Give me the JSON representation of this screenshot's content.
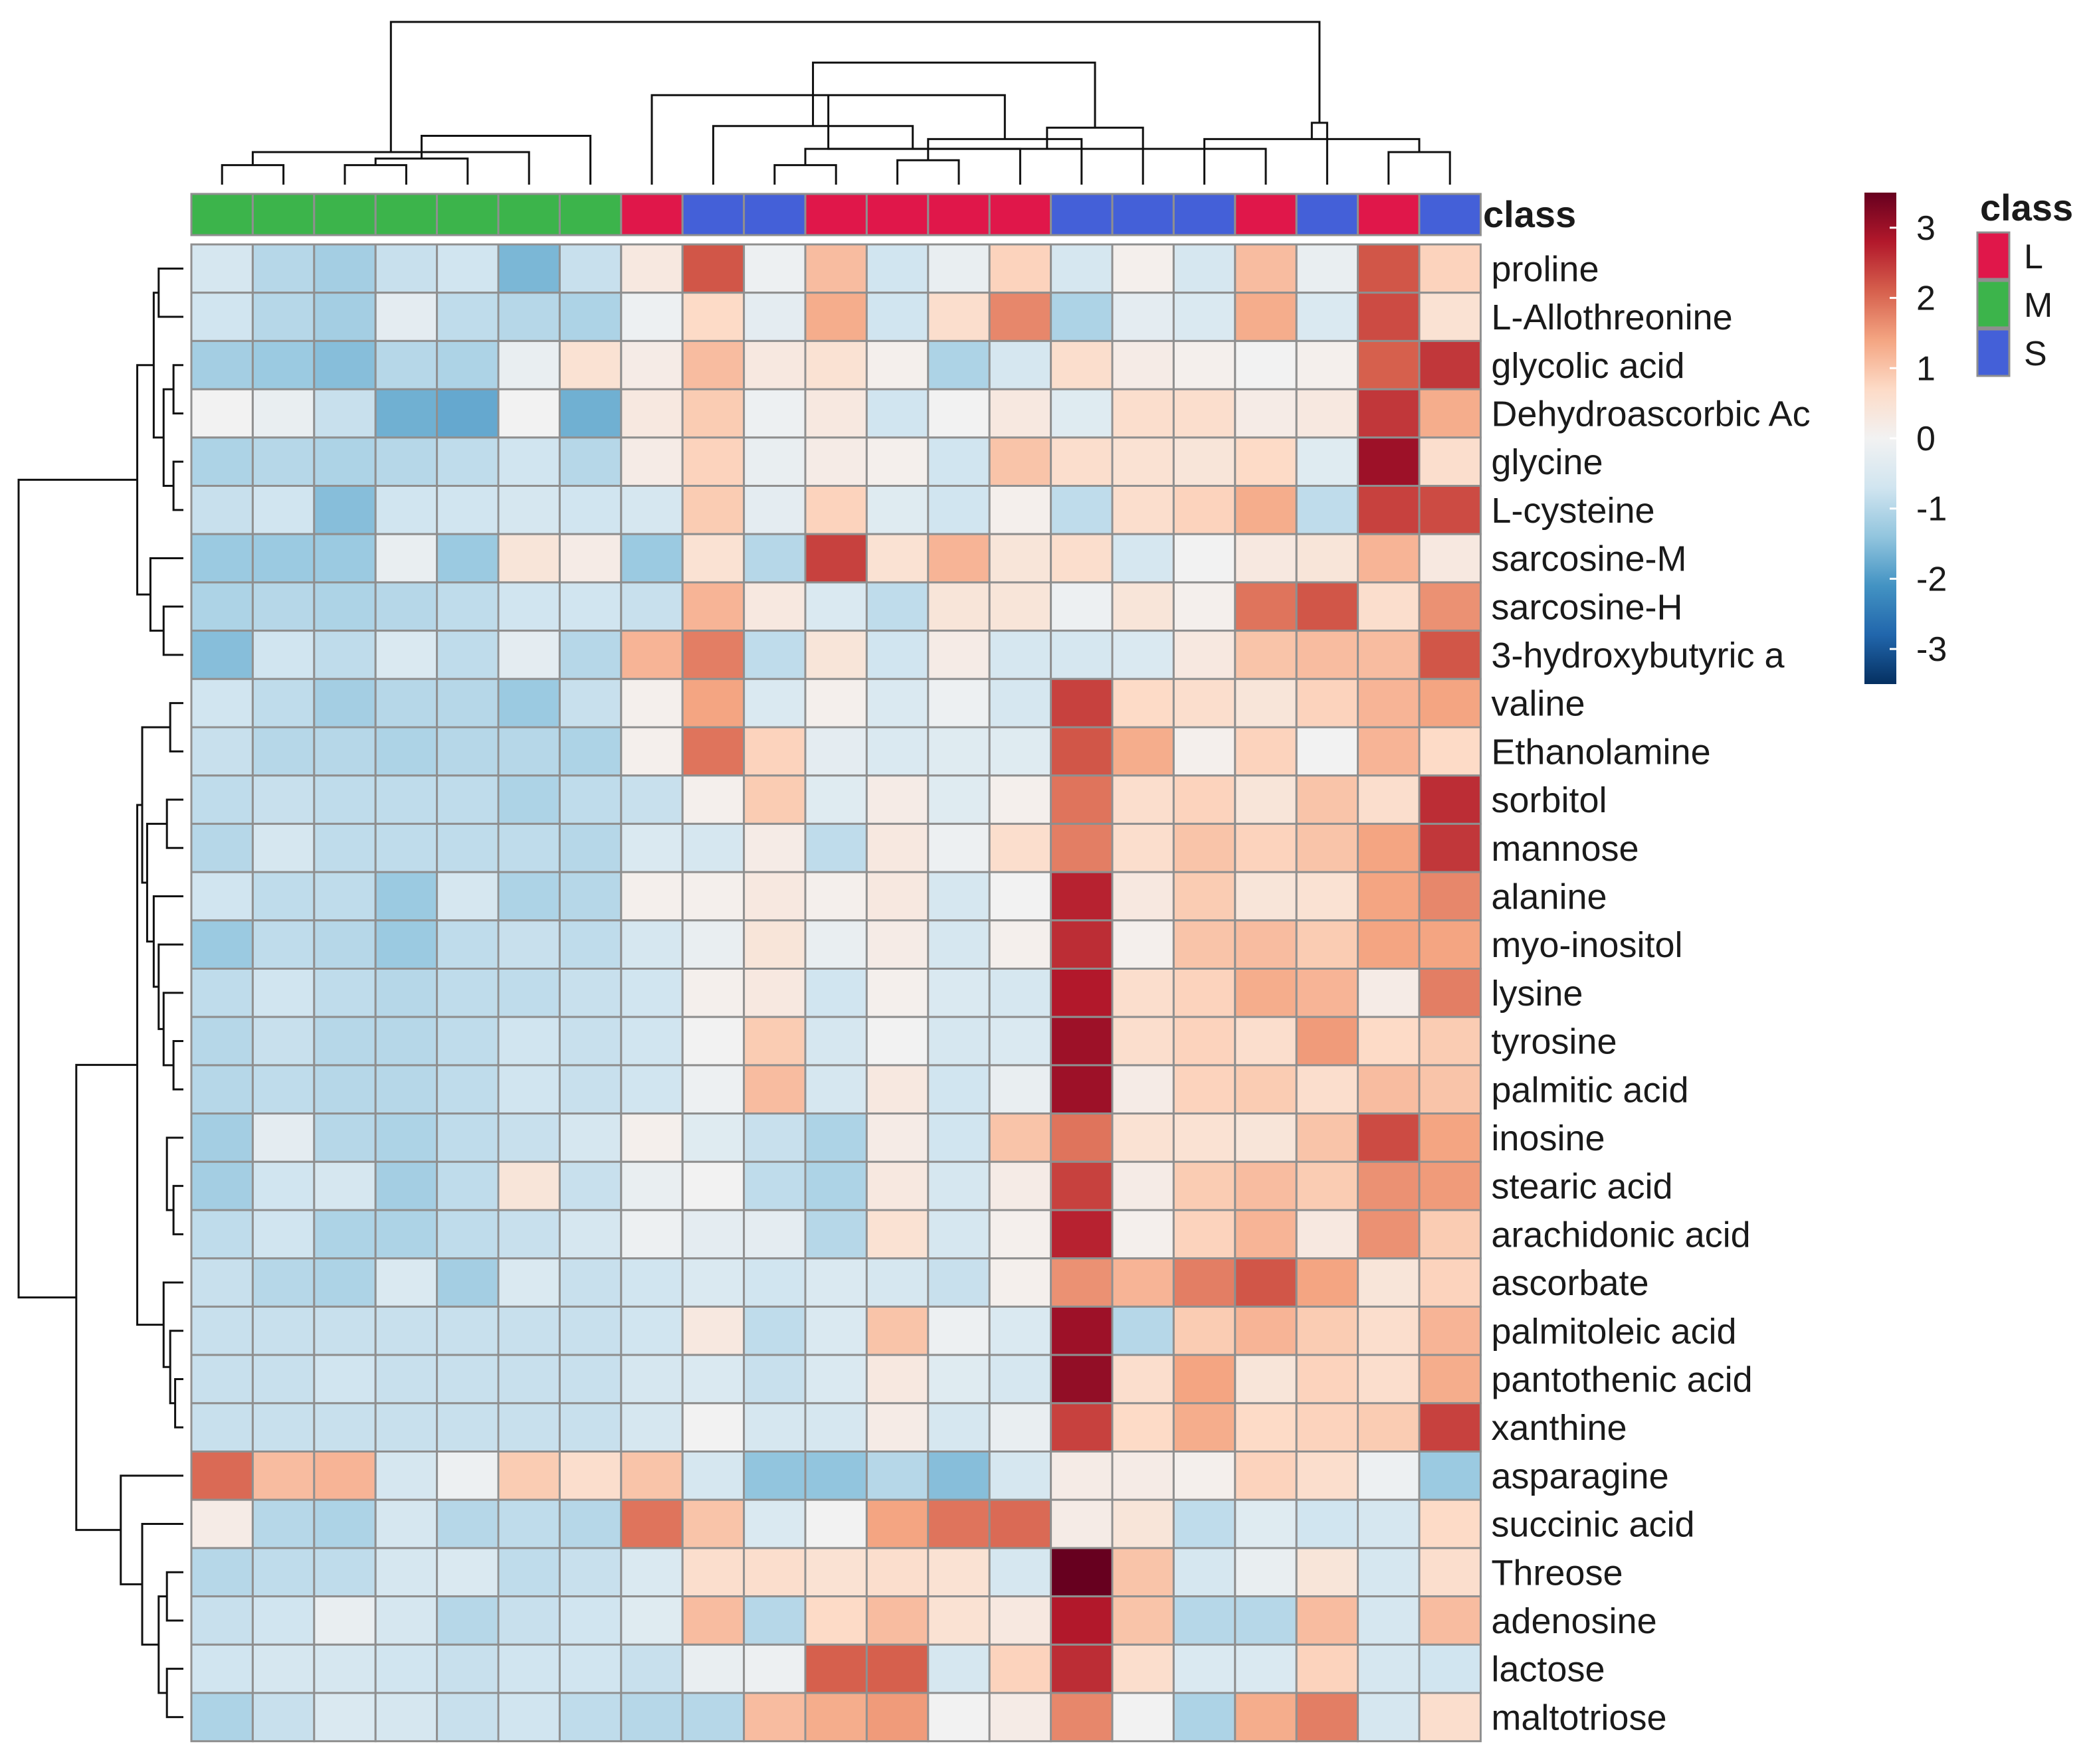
{
  "chart_data": {
    "type": "heatmap",
    "title": "",
    "annotation_title": "class",
    "column_classes": [
      "M",
      "M",
      "M",
      "M",
      "M",
      "M",
      "M",
      "L",
      "S",
      "S",
      "L",
      "L",
      "L",
      "L",
      "S",
      "S",
      "S",
      "L",
      "S",
      "L",
      "S"
    ],
    "class_colors": {
      "L": "#E0174A",
      "M": "#3CB44B",
      "S": "#4460D8"
    },
    "legend_classes": [
      "L",
      "M",
      "S"
    ],
    "rows": [
      "proline",
      "L-Allothreonine",
      "glycolic acid",
      "Dehydroascorbic Ac",
      "glycine",
      "L-cysteine",
      "sarcosine-M",
      "sarcosine-H",
      "3-hydroxybutyric a",
      "valine",
      "Ethanolamine",
      "sorbitol",
      "mannose",
      "alanine",
      "myo-inositol",
      "lysine",
      "tyrosine",
      "palmitic acid",
      "inosine",
      "stearic acid",
      "arachidonic acid",
      "ascorbate",
      "palmitoleic acid",
      "pantothenic acid",
      "xanthine",
      "asparagine",
      "succinic acid",
      "Threose",
      "adenosine",
      "lactose",
      "maltotriose"
    ],
    "values": [
      [
        -0.6,
        -1.0,
        -1.2,
        -0.8,
        -0.7,
        -1.6,
        -0.8,
        0.3,
        2.2,
        -0.1,
        1.1,
        -0.7,
        -0.2,
        0.8,
        -0.6,
        0.1,
        -0.6,
        1.1,
        -0.2,
        2.2,
        0.8
      ],
      [
        -0.7,
        -1.0,
        -1.2,
        -0.3,
        -0.9,
        -1.0,
        -1.1,
        -0.1,
        0.7,
        -0.3,
        1.3,
        -0.7,
        0.6,
        1.7,
        -1.1,
        -0.3,
        -0.5,
        1.3,
        -0.5,
        2.3,
        0.5
      ],
      [
        -1.2,
        -1.3,
        -1.5,
        -1.0,
        -1.1,
        -0.2,
        0.5,
        0.2,
        1.1,
        0.3,
        0.5,
        0.1,
        -1.1,
        -0.6,
        0.6,
        0.2,
        0.1,
        0.0,
        0.1,
        2.1,
        2.5
      ],
      [
        0.0,
        -0.2,
        -0.8,
        -1.7,
        -1.8,
        0.0,
        -1.7,
        0.3,
        0.9,
        -0.1,
        0.3,
        -0.7,
        0.0,
        0.3,
        -0.4,
        0.6,
        0.6,
        0.2,
        0.3,
        2.5,
        1.3
      ],
      [
        -1.1,
        -1.0,
        -1.1,
        -1.0,
        -0.9,
        -0.7,
        -1.0,
        0.2,
        0.8,
        -0.2,
        0.2,
        0.1,
        -0.7,
        1.0,
        0.6,
        0.5,
        0.4,
        0.7,
        -0.4,
        3.0,
        0.6
      ],
      [
        -0.8,
        -0.7,
        -1.5,
        -0.7,
        -0.7,
        -0.6,
        -0.7,
        -0.6,
        0.9,
        -0.3,
        0.8,
        -0.4,
        -0.7,
        0.1,
        -0.9,
        0.6,
        0.8,
        1.3,
        -0.9,
        2.4,
        2.3
      ],
      [
        -1.3,
        -1.3,
        -1.3,
        -0.2,
        -1.3,
        0.4,
        0.2,
        -1.3,
        0.5,
        -1.0,
        2.4,
        0.5,
        1.2,
        0.4,
        0.6,
        -0.6,
        0.0,
        0.3,
        0.4,
        1.2,
        0.3
      ],
      [
        -1.1,
        -1.0,
        -1.1,
        -1.0,
        -0.9,
        -0.7,
        -0.7,
        -0.8,
        1.2,
        0.3,
        -0.5,
        -0.9,
        0.4,
        0.4,
        -0.1,
        0.4,
        0.1,
        1.9,
        2.2,
        0.6,
        1.6
      ],
      [
        -1.5,
        -0.7,
        -0.9,
        -0.5,
        -0.9,
        -0.3,
        -1.0,
        1.2,
        1.8,
        -0.9,
        0.4,
        -0.7,
        0.2,
        -0.6,
        -0.6,
        -0.5,
        0.3,
        1.0,
        1.1,
        1.1,
        2.2
      ],
      [
        -0.7,
        -0.9,
        -1.2,
        -1.0,
        -1.0,
        -1.3,
        -0.8,
        0.1,
        1.4,
        -0.5,
        0.1,
        -0.5,
        -0.1,
        -0.6,
        2.4,
        0.7,
        0.6,
        0.4,
        0.8,
        1.2,
        1.4
      ],
      [
        -0.8,
        -1.0,
        -1.0,
        -1.1,
        -1.0,
        -1.0,
        -1.1,
        0.1,
        1.9,
        0.8,
        -0.3,
        -0.5,
        -0.4,
        -0.4,
        2.2,
        1.3,
        0.1,
        0.8,
        0.0,
        1.2,
        0.7
      ],
      [
        -0.9,
        -0.8,
        -0.9,
        -0.9,
        -0.9,
        -1.1,
        -0.9,
        -0.8,
        0.1,
        0.9,
        -0.4,
        0.2,
        -0.4,
        0.1,
        1.9,
        0.6,
        0.8,
        0.4,
        1.0,
        0.6,
        2.6
      ],
      [
        -1.0,
        -0.6,
        -0.9,
        -0.9,
        -0.9,
        -0.9,
        -1.0,
        -0.5,
        -0.6,
        0.2,
        -0.9,
        0.3,
        -0.1,
        0.6,
        1.8,
        0.6,
        1.0,
        0.8,
        1.0,
        1.4,
        2.5
      ],
      [
        -0.7,
        -0.9,
        -0.9,
        -1.3,
        -0.6,
        -1.1,
        -1.0,
        0.1,
        0.1,
        0.3,
        0.1,
        0.3,
        -0.6,
        0.0,
        2.7,
        0.3,
        0.9,
        0.4,
        0.5,
        1.4,
        1.7
      ],
      [
        -1.3,
        -0.9,
        -1.0,
        -1.3,
        -0.9,
        -0.8,
        -0.9,
        -0.6,
        -0.2,
        0.4,
        -0.2,
        0.2,
        -0.6,
        0.1,
        2.6,
        0.1,
        1.0,
        1.1,
        0.9,
        1.4,
        1.4
      ],
      [
        -0.9,
        -0.7,
        -0.9,
        -1.0,
        -0.9,
        -0.9,
        -0.8,
        -0.7,
        0.1,
        0.3,
        -0.7,
        0.1,
        -0.5,
        -0.6,
        2.8,
        0.6,
        0.8,
        1.3,
        1.2,
        0.2,
        1.8
      ],
      [
        -1.0,
        -0.8,
        -1.0,
        -1.0,
        -0.9,
        -0.7,
        -0.8,
        -0.7,
        0.0,
        0.9,
        -0.6,
        0.0,
        -0.6,
        -0.5,
        3.0,
        0.6,
        0.8,
        0.6,
        1.5,
        0.7,
        0.9
      ],
      [
        -1.0,
        -0.9,
        -1.0,
        -1.0,
        -0.9,
        -0.7,
        -0.8,
        -0.7,
        -0.1,
        1.1,
        -0.6,
        0.3,
        -0.7,
        -0.2,
        3.0,
        0.2,
        0.8,
        0.9,
        0.6,
        1.1,
        1.0
      ],
      [
        -1.2,
        -0.3,
        -1.0,
        -1.1,
        -0.9,
        -0.8,
        -0.6,
        0.1,
        -0.4,
        -0.8,
        -1.1,
        0.2,
        -0.7,
        1.0,
        1.9,
        0.5,
        0.5,
        0.4,
        1.0,
        2.3,
        1.4
      ],
      [
        -1.2,
        -0.7,
        -0.6,
        -1.2,
        -0.9,
        0.4,
        -0.8,
        -0.2,
        0.0,
        -0.9,
        -1.1,
        0.3,
        -0.6,
        0.2,
        2.4,
        0.2,
        0.9,
        1.1,
        0.9,
        1.6,
        1.5
      ],
      [
        -0.9,
        -0.7,
        -1.1,
        -1.1,
        -0.9,
        -0.8,
        -0.6,
        -0.1,
        -0.3,
        -0.3,
        -1.0,
        0.5,
        -0.6,
        0.1,
        2.7,
        0.1,
        0.8,
        1.2,
        0.3,
        1.6,
        0.9
      ],
      [
        -0.8,
        -1.0,
        -1.1,
        -0.5,
        -1.2,
        -0.5,
        -0.8,
        -0.7,
        -0.5,
        -0.7,
        -0.5,
        -0.6,
        -0.8,
        0.1,
        1.6,
        1.2,
        1.8,
        2.2,
        1.4,
        0.4,
        0.8
      ],
      [
        -0.8,
        -0.8,
        -0.8,
        -0.8,
        -0.8,
        -0.8,
        -0.8,
        -0.7,
        0.3,
        -0.9,
        -0.5,
        1.0,
        -0.1,
        -0.5,
        3.0,
        -1.0,
        0.9,
        1.2,
        0.9,
        0.6,
        1.2
      ],
      [
        -0.8,
        -0.8,
        -0.7,
        -0.8,
        -0.8,
        -0.8,
        -0.8,
        -0.6,
        -0.5,
        -0.8,
        -0.5,
        0.3,
        -0.4,
        -0.6,
        3.1,
        0.6,
        1.4,
        0.4,
        0.8,
        0.6,
        1.3
      ],
      [
        -0.8,
        -0.8,
        -0.8,
        -0.8,
        -0.8,
        -0.8,
        -0.8,
        -0.6,
        0.0,
        -0.6,
        -0.6,
        0.2,
        -0.6,
        -0.2,
        2.4,
        0.7,
        1.3,
        0.7,
        0.8,
        0.9,
        2.4
      ],
      [
        2.0,
        1.1,
        1.2,
        -0.6,
        -0.1,
        0.9,
        0.6,
        1.0,
        -0.6,
        -1.4,
        -1.4,
        -1.0,
        -1.5,
        -0.6,
        0.2,
        0.2,
        0.1,
        0.8,
        0.6,
        -0.1,
        -1.3
      ],
      [
        0.2,
        -1.0,
        -1.1,
        -0.6,
        -1.0,
        -0.9,
        -1.0,
        1.9,
        1.0,
        -0.5,
        0.0,
        1.4,
        1.9,
        2.0,
        0.2,
        0.4,
        -0.9,
        -0.4,
        -0.7,
        -0.6,
        0.7
      ],
      [
        -1.0,
        -0.9,
        -0.9,
        -0.6,
        -0.5,
        -0.9,
        -0.8,
        -0.5,
        0.6,
        0.6,
        0.5,
        0.6,
        0.5,
        -0.6,
        3.5,
        1.0,
        -0.6,
        -0.2,
        0.4,
        -0.6,
        0.6
      ],
      [
        -0.8,
        -0.7,
        -0.2,
        -0.6,
        -1.0,
        -0.8,
        -0.7,
        -0.4,
        1.1,
        -1.0,
        0.7,
        1.1,
        0.5,
        0.3,
        2.8,
        1.0,
        -1.0,
        -1.0,
        1.1,
        -0.6,
        1.1
      ],
      [
        -0.7,
        -0.6,
        -0.6,
        -0.7,
        -0.8,
        -0.7,
        -0.7,
        -0.8,
        -0.2,
        -0.1,
        2.1,
        2.1,
        -0.6,
        0.8,
        2.6,
        0.6,
        -0.5,
        -0.5,
        0.8,
        -0.6,
        -0.7
      ],
      [
        -1.1,
        -0.8,
        -0.5,
        -0.6,
        -0.8,
        -0.7,
        -0.9,
        -1.0,
        -1.0,
        1.1,
        1.3,
        1.5,
        0.0,
        0.2,
        1.7,
        0.0,
        -1.1,
        1.3,
        1.8,
        -0.6,
        0.6
      ]
    ],
    "color_scale": {
      "min": -3.5,
      "max": 3.5,
      "ticks": [
        3,
        2,
        1,
        0,
        -1,
        -2,
        -3
      ],
      "tick_labels": [
        "3",
        "2",
        "1",
        "0",
        "-1",
        "-2",
        "-3"
      ],
      "colors": [
        "#053061",
        "#2166AC",
        "#4393C3",
        "#92C5DE",
        "#D1E5F0",
        "#F2F2F2",
        "#FDDBC7",
        "#F4A582",
        "#D6604D",
        "#B2182B",
        "#67001F"
      ]
    },
    "col_dendrogram": [
      [
        0,
        1,
        0.12
      ],
      [
        2,
        3,
        0.12
      ],
      [
        22,
        4,
        0.16
      ],
      [
        21,
        5,
        0.2
      ],
      [
        23,
        6,
        0.3
      ],
      [
        9,
        10,
        0.12
      ],
      [
        11,
        12,
        0.15
      ],
      [
        13,
        26,
        0.22
      ],
      [
        14,
        27,
        0.28
      ],
      [
        8,
        28,
        0.36
      ],
      [
        7,
        29,
        0.55
      ],
      [
        20,
        19,
        0.2
      ],
      [
        17,
        31,
        0.22
      ],
      [
        16,
        32,
        0.28
      ],
      [
        15,
        33,
        0.35
      ],
      [
        34,
        18,
        0.38
      ],
      [
        30,
        35,
        0.75
      ],
      [
        24,
        36,
        1.0
      ]
    ],
    "row_dendrogram": [
      [
        0,
        1,
        0.15
      ],
      [
        2,
        3,
        0.06
      ],
      [
        4,
        5,
        0.06
      ],
      [
        32,
        33,
        0.12
      ],
      [
        31,
        34,
        0.18
      ],
      [
        7,
        8,
        0.12
      ],
      [
        6,
        36,
        0.2
      ],
      [
        35,
        37,
        0.28
      ],
      [
        9,
        10,
        0.08
      ],
      [
        11,
        12,
        0.1
      ],
      [
        16,
        17,
        0.06
      ],
      [
        19,
        20,
        0.06
      ],
      [
        18,
        42,
        0.1
      ],
      [
        15,
        41,
        0.12
      ],
      [
        14,
        44,
        0.15
      ],
      [
        13,
        45,
        0.18
      ],
      [
        40,
        46,
        0.22
      ],
      [
        39,
        47,
        0.25
      ],
      [
        23,
        24,
        0.05
      ],
      [
        22,
        49,
        0.08
      ],
      [
        21,
        50,
        0.12
      ],
      [
        48,
        51,
        0.28
      ],
      [
        27,
        28,
        0.1
      ],
      [
        29,
        30,
        0.1
      ],
      [
        53,
        54,
        0.15
      ],
      [
        26,
        55,
        0.25
      ],
      [
        25,
        56,
        0.38
      ],
      [
        52,
        57,
        0.65
      ],
      [
        38,
        58,
        1.0
      ]
    ]
  }
}
